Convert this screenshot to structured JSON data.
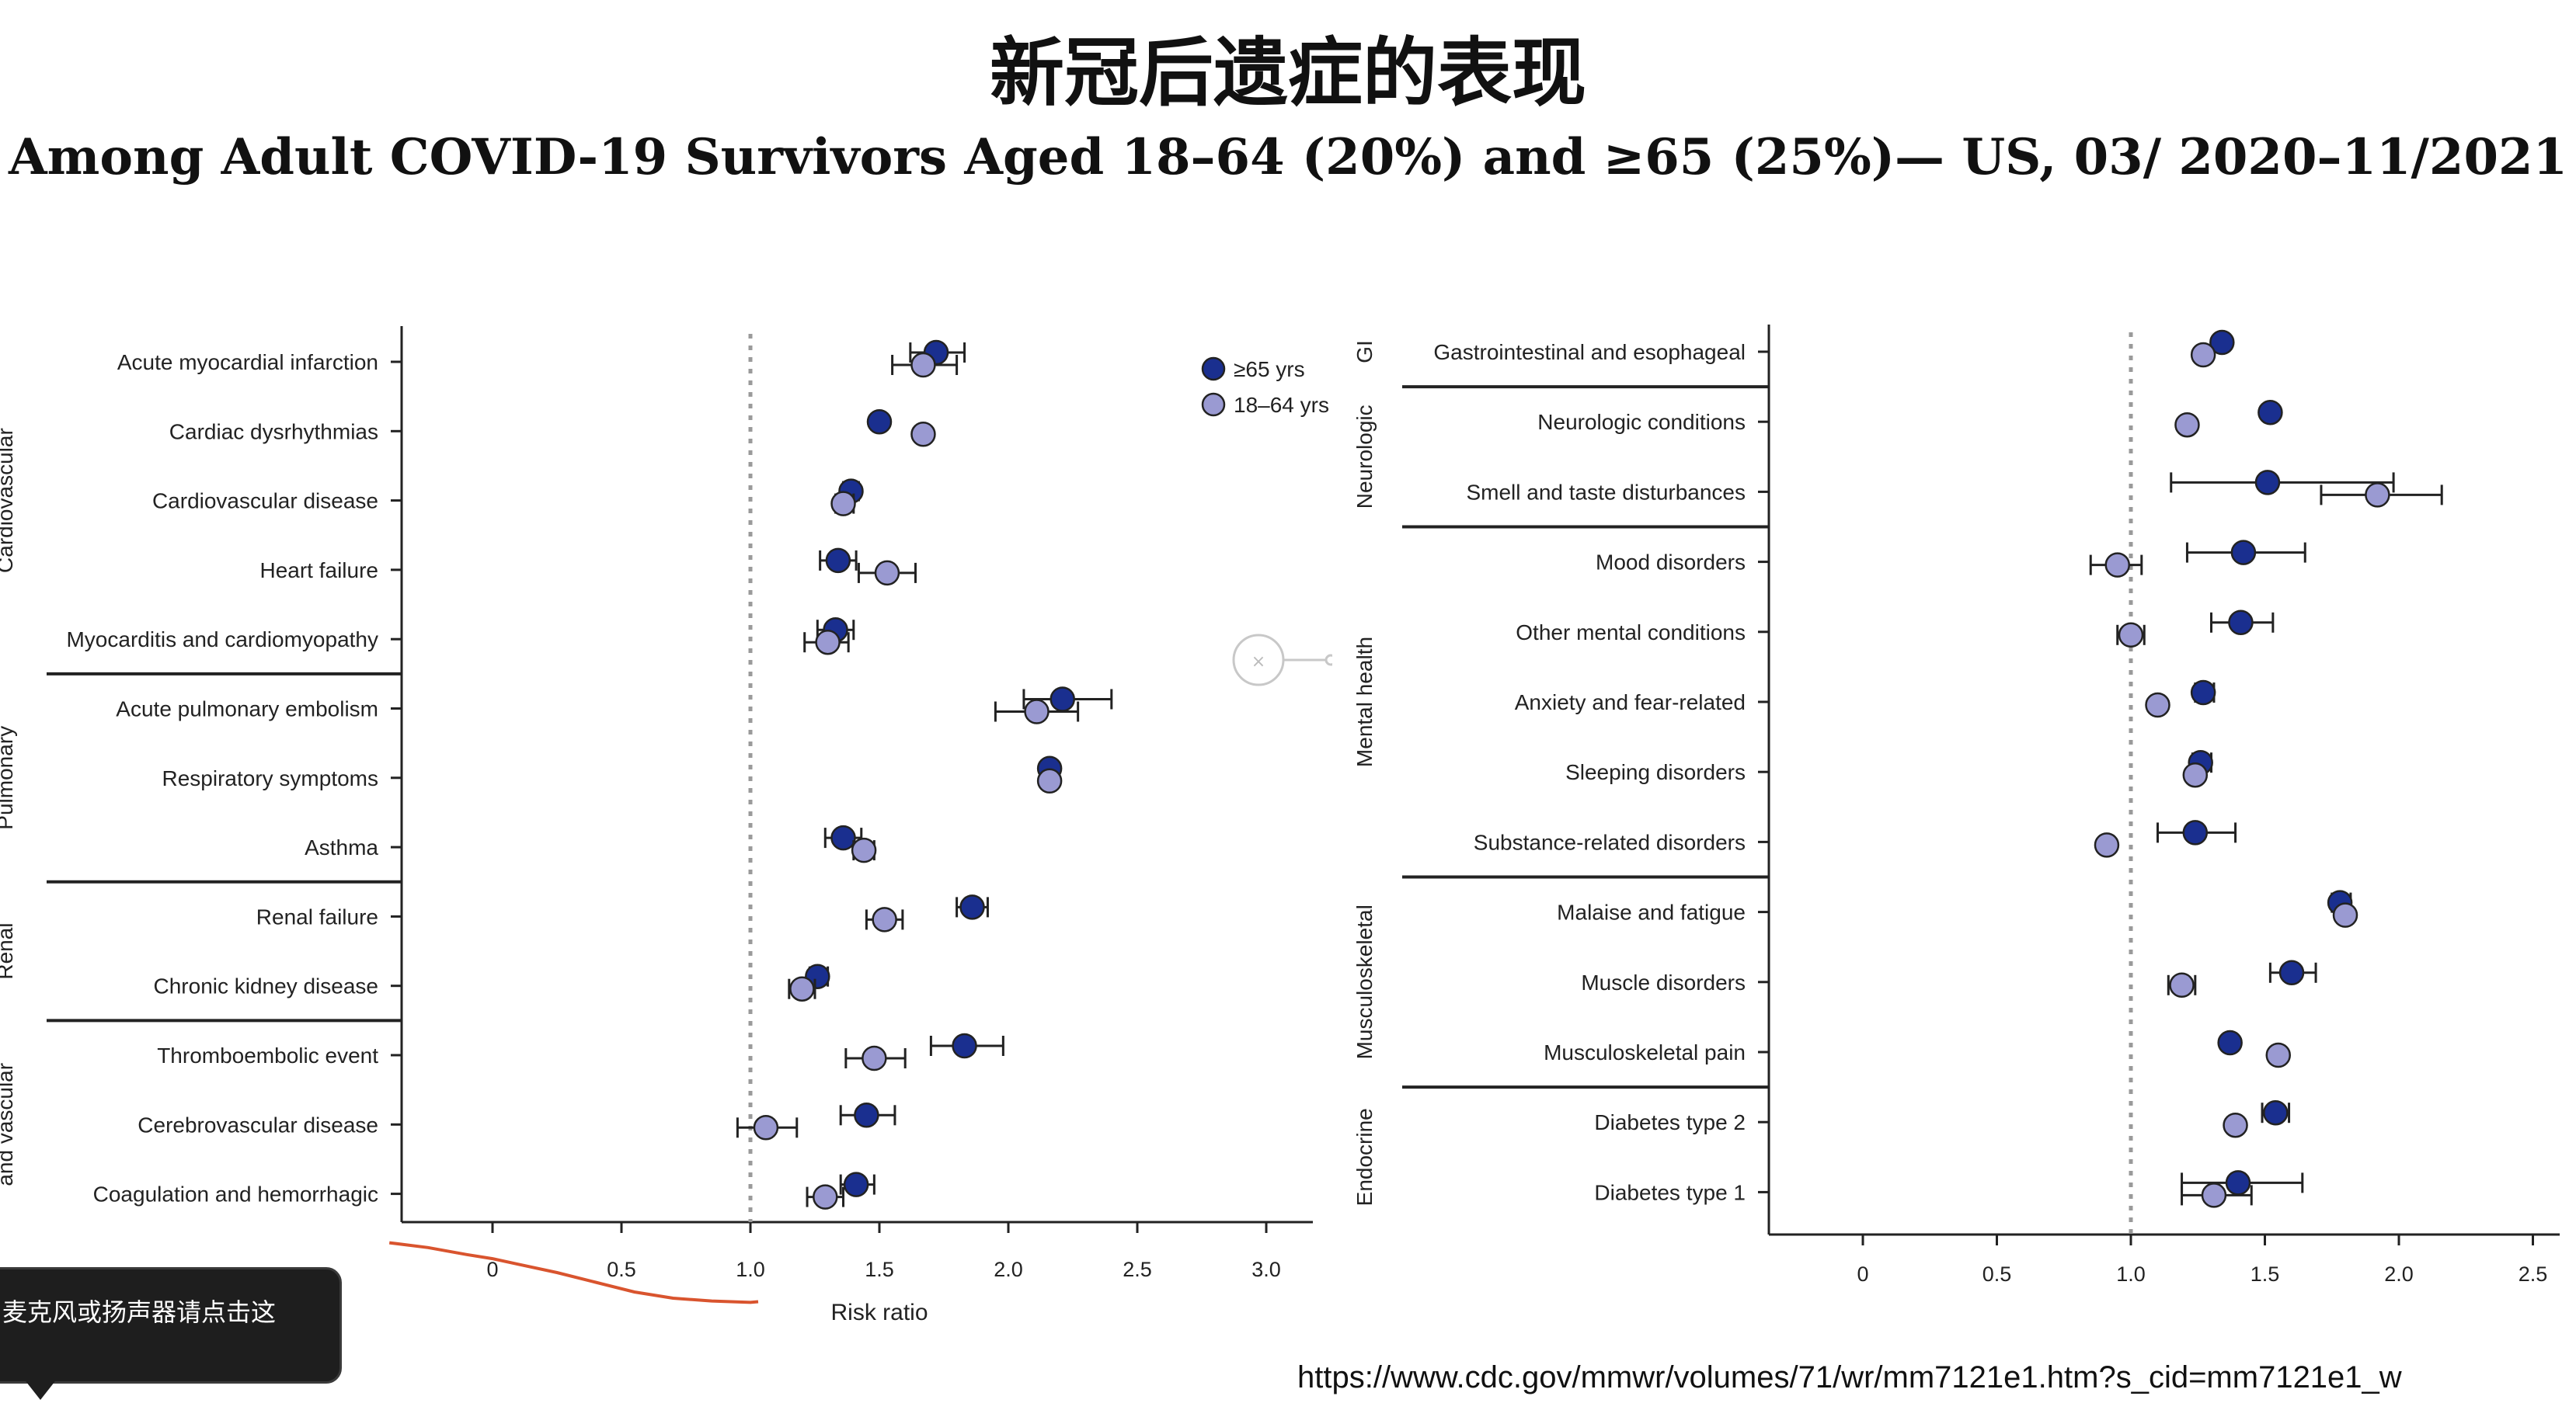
{
  "title": "新冠后遗症的表现",
  "subtitle": "Among Adult COVID-19 Survivors Aged 18–64 (20%) and ≥65 (25%)— US, 03/ 2020–11/2021",
  "source_url": "https://www.cdc.gov/mmwr/volumes/71/wr/mm7121e1.htm?s_cid=mm7121e1_w",
  "toast_text": "麦克风或扬声器请点击这",
  "colors": {
    "older": "#1a2f8f",
    "younger": "#9a9ad2",
    "trend": "#d9542e"
  },
  "chart_data": [
    {
      "type": "scatter",
      "xlabel": "Risk ratio",
      "xlim": [
        -0.35,
        3.2
      ],
      "xticks": [
        0,
        0.5,
        1.0,
        1.5,
        2.0,
        2.5,
        3.0
      ],
      "xtick_labels": [
        "0",
        "0.5",
        "1.0",
        "1.5",
        "2.0",
        "2.5",
        "3.0"
      ],
      "reference_line": 1.0,
      "legend": {
        "placement": "top-right",
        "entries": [
          "≥65 yrs",
          "18–64 yrs"
        ]
      },
      "groups": [
        {
          "name": "Cardiovascular",
          "rows": [
            0,
            4
          ]
        },
        {
          "name": "Pulmonary",
          "rows": [
            5,
            7
          ]
        },
        {
          "name": "Renal",
          "rows": [
            8,
            9
          ]
        },
        {
          "name": "and vascular",
          "rows": [
            10,
            12
          ]
        }
      ],
      "categories": [
        "Acute myocardial infarction",
        "Cardiac dysrhythmias",
        "Cardiovascular disease",
        "Heart failure",
        "Myocarditis and cardiomyopathy",
        "Acute pulmonary embolism",
        "Respiratory symptoms",
        "Asthma",
        "Renal failure",
        "Chronic kidney disease",
        "Thromboembolic event",
        "Cerebrovascular disease",
        "Coagulation and hemorrhagic"
      ],
      "series": [
        {
          "name": "≥65 yrs",
          "values": [
            1.72,
            1.5,
            1.39,
            1.34,
            1.33,
            2.21,
            2.16,
            1.36,
            1.86,
            1.26,
            1.83,
            1.45,
            1.41
          ],
          "ci_low": [
            1.62,
            null,
            1.36,
            1.27,
            1.26,
            2.06,
            null,
            1.29,
            1.8,
            1.23,
            1.7,
            1.35,
            1.35
          ],
          "ci_high": [
            1.83,
            null,
            1.42,
            1.41,
            1.4,
            2.4,
            null,
            1.43,
            1.92,
            1.3,
            1.98,
            1.56,
            1.48
          ]
        },
        {
          "name": "18–64 yrs",
          "values": [
            1.67,
            1.67,
            1.36,
            1.53,
            1.3,
            2.11,
            2.16,
            1.44,
            1.52,
            1.2,
            1.48,
            1.06,
            1.29
          ],
          "ci_low": [
            1.55,
            null,
            1.33,
            1.42,
            1.21,
            1.95,
            null,
            1.4,
            1.45,
            1.15,
            1.37,
            0.95,
            1.22
          ],
          "ci_high": [
            1.8,
            null,
            1.4,
            1.64,
            1.38,
            2.27,
            null,
            1.48,
            1.59,
            1.25,
            1.6,
            1.18,
            1.36
          ]
        }
      ],
      "annotation_curve": {
        "x": [
          -0.4,
          -0.25,
          -0.1,
          0.0,
          0.1,
          0.25,
          0.4,
          0.55,
          0.7,
          0.85,
          1.0,
          1.03
        ],
        "y": [
          12.75,
          12.82,
          12.92,
          12.98,
          13.06,
          13.18,
          13.32,
          13.46,
          13.55,
          13.59,
          13.61,
          13.6
        ]
      }
    },
    {
      "type": "scatter",
      "xlim": [
        -0.35,
        2.55
      ],
      "xticks": [
        0,
        0.5,
        1.0,
        1.5,
        2.0,
        2.5
      ],
      "xtick_labels": [
        "0",
        "0.5",
        "1.0",
        "1.5",
        "2.0",
        "2.5"
      ],
      "reference_line": 1.0,
      "groups": [
        {
          "name": "GI",
          "rows": [
            0,
            0
          ]
        },
        {
          "name": "Neurologic",
          "rows": [
            1,
            2
          ]
        },
        {
          "name": "Mental health",
          "rows": [
            3,
            7
          ]
        },
        {
          "name": "Musculoskeletal",
          "rows": [
            8,
            10
          ]
        },
        {
          "name": "Endocrine",
          "rows": [
            11,
            12
          ]
        }
      ],
      "categories": [
        "Gastrointestinal and esophageal",
        "Neurologic conditions",
        "Smell and taste disturbances",
        "Mood disorders",
        "Other mental conditions",
        "Anxiety and fear-related",
        "Sleeping disorders",
        "Substance-related disorders",
        "Malaise and fatigue",
        "Muscle disorders",
        "Musculoskeletal pain",
        "Diabetes type 2",
        "Diabetes type 1"
      ],
      "series": [
        {
          "name": "≥65 yrs",
          "values": [
            1.34,
            1.52,
            1.51,
            1.42,
            1.41,
            1.27,
            1.26,
            1.24,
            1.78,
            1.6,
            1.37,
            1.54,
            1.4
          ],
          "ci_low": [
            null,
            null,
            1.15,
            1.21,
            1.3,
            1.24,
            1.23,
            1.1,
            1.75,
            1.52,
            null,
            1.49,
            1.19
          ],
          "ci_high": [
            null,
            null,
            1.98,
            1.65,
            1.53,
            1.31,
            1.3,
            1.39,
            1.82,
            1.69,
            null,
            1.59,
            1.64
          ]
        },
        {
          "name": "18–64 yrs",
          "values": [
            1.27,
            1.21,
            1.92,
            0.95,
            1.0,
            1.1,
            1.24,
            0.91,
            1.8,
            1.19,
            1.55,
            1.39,
            1.31
          ],
          "ci_low": [
            null,
            null,
            1.71,
            0.85,
            0.95,
            null,
            null,
            null,
            null,
            1.14,
            null,
            null,
            1.19
          ],
          "ci_high": [
            null,
            null,
            2.16,
            1.04,
            1.05,
            null,
            null,
            null,
            null,
            1.24,
            null,
            null,
            1.45
          ]
        }
      ]
    }
  ]
}
